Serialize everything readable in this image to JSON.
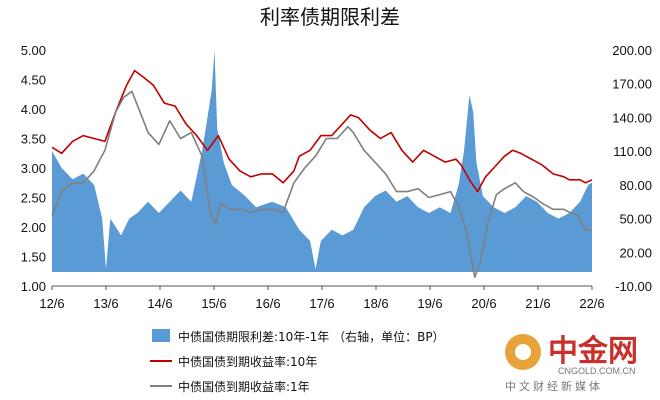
{
  "chart_data": {
    "type": "area",
    "title": "利率债期限利差",
    "x_tick_labels": [
      "12/6",
      "13/6",
      "14/6",
      "15/6",
      "16/6",
      "17/6",
      "18/6",
      "19/6",
      "20/6",
      "21/6",
      "22/6"
    ],
    "y_left": {
      "ylim": [
        1.0,
        5.0
      ],
      "ticks": [
        "1.00",
        "1.50",
        "2.00",
        "2.50",
        "3.00",
        "3.50",
        "4.00",
        "4.50",
        "5.00"
      ]
    },
    "y_right": {
      "ylim": [
        -10,
        200
      ],
      "ticks": [
        "-10.00",
        "20.00",
        "50.00",
        "80.00",
        "110.00",
        "140.00",
        "170.00",
        "200.00"
      ]
    },
    "series": [
      {
        "name": "中债国债期限利差:10年-1年 （右轴，单位：BP）",
        "kind": "area",
        "axis": "right",
        "color": "#5b9bd5",
        "points": [
          [
            2012.42,
            110
          ],
          [
            2012.6,
            95
          ],
          [
            2012.8,
            85
          ],
          [
            2013.0,
            90
          ],
          [
            2013.2,
            80
          ],
          [
            2013.35,
            50
          ],
          [
            2013.42,
            5
          ],
          [
            2013.5,
            50
          ],
          [
            2013.7,
            35
          ],
          [
            2013.85,
            50
          ],
          [
            2014.0,
            55
          ],
          [
            2014.2,
            65
          ],
          [
            2014.4,
            55
          ],
          [
            2014.6,
            65
          ],
          [
            2014.8,
            75
          ],
          [
            2015.0,
            65
          ],
          [
            2015.2,
            110
          ],
          [
            2015.3,
            140
          ],
          [
            2015.38,
            165
          ],
          [
            2015.43,
            200
          ],
          [
            2015.48,
            130
          ],
          [
            2015.6,
            100
          ],
          [
            2015.75,
            80
          ],
          [
            2016.0,
            70
          ],
          [
            2016.2,
            60
          ],
          [
            2016.5,
            65
          ],
          [
            2016.75,
            60
          ],
          [
            2017.0,
            40
          ],
          [
            2017.2,
            30
          ],
          [
            2017.3,
            5
          ],
          [
            2017.4,
            30
          ],
          [
            2017.6,
            40
          ],
          [
            2017.8,
            35
          ],
          [
            2018.0,
            40
          ],
          [
            2018.2,
            60
          ],
          [
            2018.4,
            70
          ],
          [
            2018.6,
            75
          ],
          [
            2018.8,
            65
          ],
          [
            2019.0,
            70
          ],
          [
            2019.2,
            60
          ],
          [
            2019.4,
            55
          ],
          [
            2019.6,
            60
          ],
          [
            2019.8,
            55
          ],
          [
            2019.95,
            80
          ],
          [
            2020.05,
            110
          ],
          [
            2020.15,
            160
          ],
          [
            2020.22,
            145
          ],
          [
            2020.28,
            100
          ],
          [
            2020.4,
            70
          ],
          [
            2020.6,
            60
          ],
          [
            2020.8,
            55
          ],
          [
            2021.0,
            60
          ],
          [
            2021.2,
            70
          ],
          [
            2021.4,
            65
          ],
          [
            2021.6,
            55
          ],
          [
            2021.8,
            50
          ],
          [
            2022.0,
            55
          ],
          [
            2022.2,
            65
          ],
          [
            2022.35,
            80
          ],
          [
            2022.42,
            82
          ]
        ]
      },
      {
        "name": "中债国债到期收益率:10年",
        "kind": "line",
        "axis": "left",
        "color": "#c00000",
        "points": [
          [
            2012.42,
            3.35
          ],
          [
            2012.6,
            3.25
          ],
          [
            2012.8,
            3.45
          ],
          [
            2013.0,
            3.55
          ],
          [
            2013.2,
            3.5
          ],
          [
            2013.4,
            3.45
          ],
          [
            2013.6,
            3.95
          ],
          [
            2013.8,
            4.4
          ],
          [
            2013.95,
            4.65
          ],
          [
            2014.1,
            4.55
          ],
          [
            2014.3,
            4.4
          ],
          [
            2014.5,
            4.1
          ],
          [
            2014.7,
            4.05
          ],
          [
            2014.9,
            3.75
          ],
          [
            2015.1,
            3.55
          ],
          [
            2015.3,
            3.3
          ],
          [
            2015.5,
            3.55
          ],
          [
            2015.7,
            3.15
          ],
          [
            2015.9,
            2.95
          ],
          [
            2016.1,
            2.85
          ],
          [
            2016.3,
            2.9
          ],
          [
            2016.5,
            2.9
          ],
          [
            2016.7,
            2.75
          ],
          [
            2016.9,
            2.95
          ],
          [
            2017.0,
            3.2
          ],
          [
            2017.2,
            3.3
          ],
          [
            2017.4,
            3.55
          ],
          [
            2017.6,
            3.55
          ],
          [
            2017.8,
            3.75
          ],
          [
            2017.95,
            3.9
          ],
          [
            2018.1,
            3.85
          ],
          [
            2018.3,
            3.65
          ],
          [
            2018.5,
            3.5
          ],
          [
            2018.7,
            3.6
          ],
          [
            2018.9,
            3.3
          ],
          [
            2019.1,
            3.1
          ],
          [
            2019.3,
            3.3
          ],
          [
            2019.5,
            3.2
          ],
          [
            2019.7,
            3.1
          ],
          [
            2019.9,
            3.15
          ],
          [
            2020.0,
            3.05
          ],
          [
            2020.15,
            2.8
          ],
          [
            2020.3,
            2.6
          ],
          [
            2020.45,
            2.85
          ],
          [
            2020.6,
            3.0
          ],
          [
            2020.8,
            3.2
          ],
          [
            2020.95,
            3.3
          ],
          [
            2021.1,
            3.25
          ],
          [
            2021.3,
            3.15
          ],
          [
            2021.5,
            3.05
          ],
          [
            2021.7,
            2.9
          ],
          [
            2021.9,
            2.85
          ],
          [
            2022.0,
            2.8
          ],
          [
            2022.2,
            2.8
          ],
          [
            2022.3,
            2.75
          ],
          [
            2022.42,
            2.8
          ]
        ]
      },
      {
        "name": "中债国债到期收益率:1年",
        "kind": "line",
        "axis": "left",
        "color": "#7f7f7f",
        "points": [
          [
            2012.42,
            2.2
          ],
          [
            2012.6,
            2.6
          ],
          [
            2012.8,
            2.75
          ],
          [
            2013.0,
            2.75
          ],
          [
            2013.2,
            2.95
          ],
          [
            2013.4,
            3.3
          ],
          [
            2013.6,
            3.95
          ],
          [
            2013.75,
            4.2
          ],
          [
            2013.9,
            4.3
          ],
          [
            2014.05,
            3.95
          ],
          [
            2014.2,
            3.6
          ],
          [
            2014.4,
            3.4
          ],
          [
            2014.6,
            3.8
          ],
          [
            2014.8,
            3.5
          ],
          [
            2015.0,
            3.6
          ],
          [
            2015.2,
            3.2
          ],
          [
            2015.35,
            2.25
          ],
          [
            2015.45,
            2.05
          ],
          [
            2015.55,
            2.4
          ],
          [
            2015.7,
            2.3
          ],
          [
            2015.9,
            2.3
          ],
          [
            2016.1,
            2.25
          ],
          [
            2016.3,
            2.3
          ],
          [
            2016.5,
            2.3
          ],
          [
            2016.7,
            2.25
          ],
          [
            2016.9,
            2.75
          ],
          [
            2017.1,
            3.0
          ],
          [
            2017.3,
            3.2
          ],
          [
            2017.5,
            3.5
          ],
          [
            2017.7,
            3.5
          ],
          [
            2017.9,
            3.7
          ],
          [
            2018.0,
            3.6
          ],
          [
            2018.2,
            3.3
          ],
          [
            2018.4,
            3.1
          ],
          [
            2018.6,
            2.9
          ],
          [
            2018.8,
            2.6
          ],
          [
            2019.0,
            2.6
          ],
          [
            2019.2,
            2.65
          ],
          [
            2019.4,
            2.5
          ],
          [
            2019.6,
            2.55
          ],
          [
            2019.8,
            2.6
          ],
          [
            2019.95,
            2.35
          ],
          [
            2020.1,
            1.9
          ],
          [
            2020.25,
            1.15
          ],
          [
            2020.35,
            1.4
          ],
          [
            2020.5,
            2.1
          ],
          [
            2020.65,
            2.55
          ],
          [
            2020.8,
            2.65
          ],
          [
            2021.0,
            2.75
          ],
          [
            2021.15,
            2.6
          ],
          [
            2021.35,
            2.5
          ],
          [
            2021.5,
            2.4
          ],
          [
            2021.7,
            2.3
          ],
          [
            2021.9,
            2.3
          ],
          [
            2022.0,
            2.25
          ],
          [
            2022.15,
            2.2
          ],
          [
            2022.3,
            1.95
          ],
          [
            2022.42,
            1.95
          ]
        ]
      }
    ],
    "legend": [
      {
        "label": "中债国债期限利差:10年-1年 （右轴，单位：BP）",
        "color": "#5b9bd5",
        "kind": "area"
      },
      {
        "label": "中债国债到期收益率:10年",
        "color": "#c00000",
        "kind": "line"
      },
      {
        "label": "中债国债到期收益率:1年",
        "color": "#7f7f7f",
        "kind": "line"
      }
    ],
    "legend_position": "bottom-left",
    "grid": false
  },
  "watermark": {
    "main": "中金网",
    "url": "CNGOLD.COM.CN",
    "tagline": "中文财经新媒体"
  }
}
